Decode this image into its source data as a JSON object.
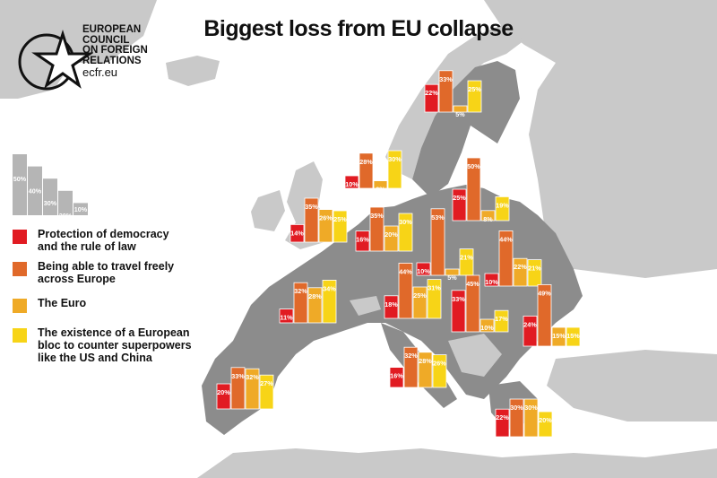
{
  "title": "Biggest loss from EU collapse",
  "logo": {
    "lines": [
      "EUROPEAN",
      "COUNCIL",
      "ON FOREIGN",
      "RELATIONS"
    ],
    "url": "ecfr.eu"
  },
  "colors": {
    "map_land": "#8c8c8c",
    "map_other": "#c9c9c9",
    "sea": "#ffffff",
    "democracy": "#e11b22",
    "travel": "#e0692a",
    "euro": "#efaa27",
    "bloc": "#f7d417",
    "scale": "#b5b5b5"
  },
  "legend": {
    "items": [
      {
        "label_line1": "Protection of democracy",
        "label_line2": "and the rule of law",
        "color": "#e11b22"
      },
      {
        "label_line1": "Being able to travel freely",
        "label_line2": "across Europe",
        "color": "#e0692a"
      },
      {
        "label_line1": "The Euro",
        "label_line2": "",
        "color": "#efaa27"
      },
      {
        "label_line1": "The existence of a European",
        "label_line2": "bloc to counter superpowers",
        "label_line3": "like the US and China",
        "color": "#f7d417"
      }
    ]
  },
  "chart_data": {
    "type": "bar",
    "title": "Biggest loss from EU collapse",
    "unit": "%",
    "series_names": [
      "Protection of democracy and the rule of law",
      "Being able to travel freely across Europe",
      "The Euro",
      "The existence of a European bloc to counter superpowers like the US and China"
    ],
    "scale_legend": [
      50,
      40,
      30,
      20,
      10
    ],
    "groups": [
      {
        "values": [
          22,
          33,
          5,
          25
        ]
      },
      {
        "values": [
          10,
          28,
          6,
          30
        ]
      },
      {
        "values": [
          14,
          35,
          26,
          25
        ]
      },
      {
        "values": [
          16,
          35,
          20,
          30
        ]
      },
      {
        "values": [
          25,
          50,
          8,
          19
        ]
      },
      {
        "values": [
          10,
          53,
          5,
          21
        ]
      },
      {
        "values": [
          10,
          44,
          22,
          21
        ]
      },
      {
        "values": [
          11,
          32,
          28,
          34
        ]
      },
      {
        "values": [
          18,
          44,
          25,
          31
        ]
      },
      {
        "values": [
          33,
          45,
          10,
          17
        ]
      },
      {
        "values": [
          24,
          49,
          15,
          15
        ]
      },
      {
        "values": [
          16,
          32,
          28,
          26
        ]
      },
      {
        "values": [
          20,
          33,
          32,
          27
        ]
      },
      {
        "values": [
          22,
          30,
          30,
          20
        ]
      }
    ]
  }
}
